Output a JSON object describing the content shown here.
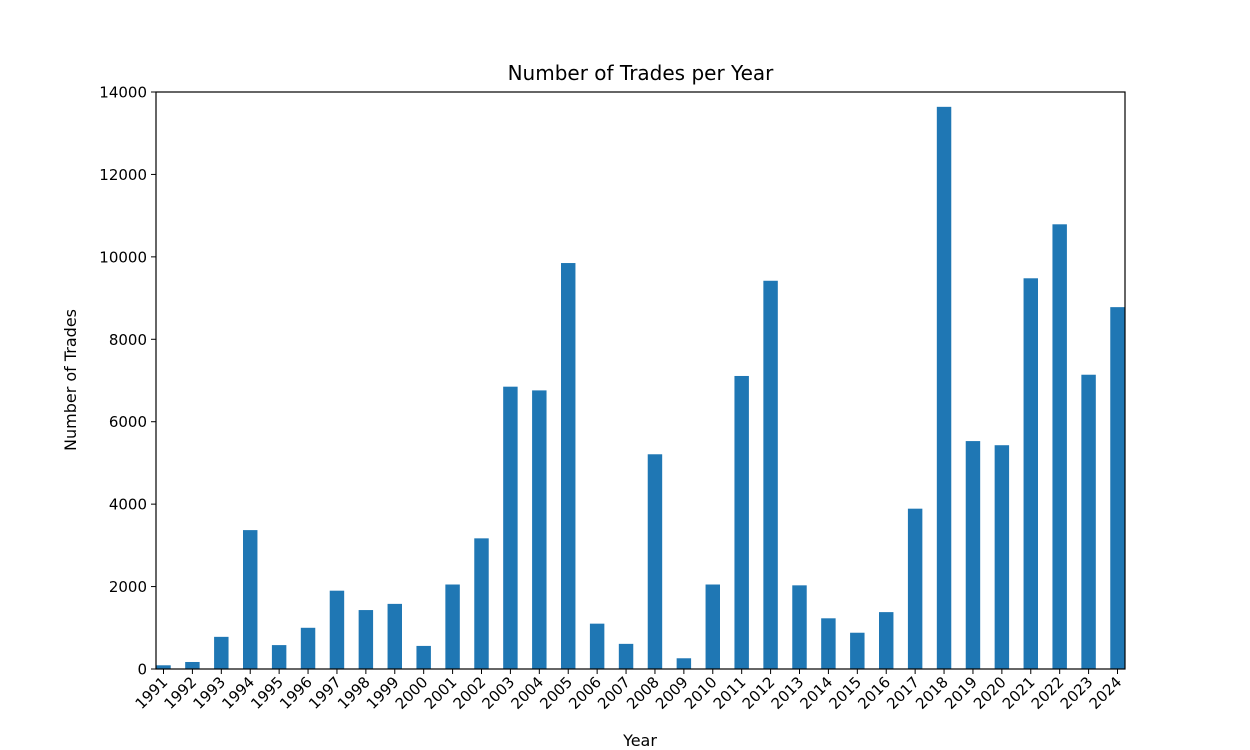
{
  "chart_data": {
    "type": "bar",
    "title": "Number of Trades per Year",
    "xlabel": "Year",
    "ylabel": "Number of Trades",
    "categories": [
      "1991",
      "1992",
      "1993",
      "1994",
      "1995",
      "1996",
      "1997",
      "1998",
      "1999",
      "2000",
      "2001",
      "2002",
      "2003",
      "2004",
      "2005",
      "2006",
      "2007",
      "2008",
      "2009",
      "2010",
      "2011",
      "2012",
      "2013",
      "2014",
      "2015",
      "2016",
      "2017",
      "2018",
      "2019",
      "2020",
      "2021",
      "2022",
      "2023",
      "2024"
    ],
    "values": [
      90,
      170,
      780,
      3370,
      580,
      1000,
      1900,
      1430,
      1580,
      560,
      2050,
      3170,
      6850,
      6760,
      9850,
      1100,
      610,
      5210,
      260,
      2050,
      7110,
      9420,
      2030,
      1230,
      880,
      1380,
      3890,
      13640,
      5530,
      5430,
      9480,
      10790,
      7140,
      8780
    ],
    "ylim": [
      0,
      14000
    ],
    "yticks": [
      0,
      2000,
      4000,
      6000,
      8000,
      10000,
      12000,
      14000
    ],
    "grid": false,
    "bar_color": "#1f77b4"
  }
}
